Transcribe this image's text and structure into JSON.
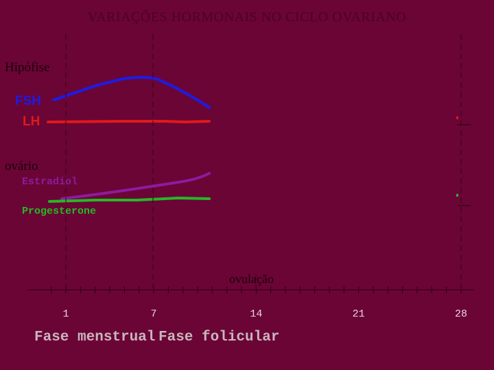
{
  "title": "VARIAÇÕES HORMONAIS NO CICLO OVARIANO",
  "groups": [
    {
      "label": "Hipófise",
      "hormones": [
        "FSH",
        "LH"
      ]
    },
    {
      "label": "ovário",
      "hormones": [
        "Estradiol",
        "Progesterone"
      ]
    }
  ],
  "axis": {
    "ticks": [
      1,
      7,
      14,
      21,
      28
    ],
    "annotation": "ovulação"
  },
  "phases": [
    "Fase menstrual",
    "Fase folicular"
  ]
}
